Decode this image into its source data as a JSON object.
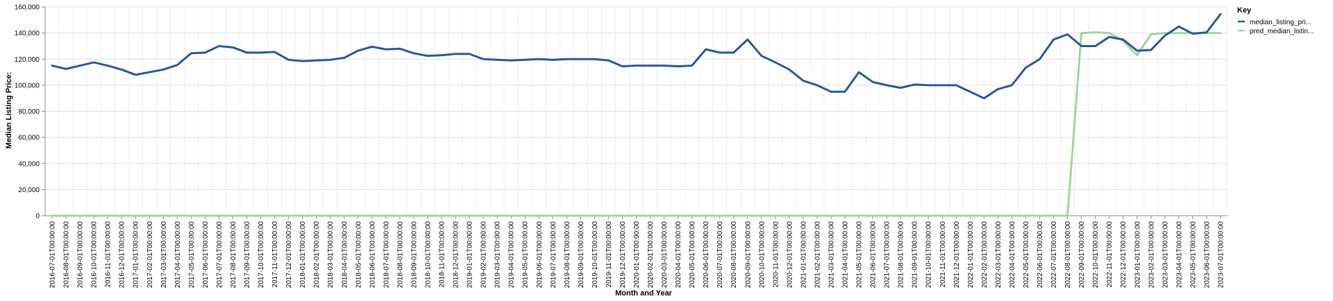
{
  "chart_data": {
    "type": "line",
    "xlabel": "Month and Year",
    "ylabel": "Median Listing Price:",
    "ylim": [
      0,
      160000
    ],
    "yticks": [
      "0",
      "20,000",
      "40,000",
      "60,000",
      "80,000",
      "100,000",
      "120,000",
      "140,000",
      "160,000"
    ],
    "grid": true,
    "legend": {
      "title": "Key",
      "placement": "right"
    },
    "categories": [
      "2016-07-01T00:00:00",
      "2016-08-01T00:00:00",
      "2016-09-01T00:00:00",
      "2016-10-01T00:00:00",
      "2016-11-01T00:00:00",
      "2016-12-01T00:00:00",
      "2017-01-01T00:00:00",
      "2017-02-01T00:00:00",
      "2017-03-01T00:00:00",
      "2017-04-01T00:00:00",
      "2017-05-01T00:00:00",
      "2017-06-01T00:00:00",
      "2017-07-01T00:00:00",
      "2017-08-01T00:00:00",
      "2017-09-01T00:00:00",
      "2017-10-01T00:00:00",
      "2017-11-01T00:00:00",
      "2017-12-01T00:00:00",
      "2018-01-01T00:00:00",
      "2018-02-01T00:00:00",
      "2018-03-01T00:00:00",
      "2018-04-01T00:00:00",
      "2018-05-01T00:00:00",
      "2018-06-01T00:00:00",
      "2018-07-01T00:00:00",
      "2018-08-01T00:00:00",
      "2018-09-01T00:00:00",
      "2018-10-01T00:00:00",
      "2018-11-01T00:00:00",
      "2018-12-01T00:00:00",
      "2019-01-01T00:00:00",
      "2019-02-01T00:00:00",
      "2019-03-01T00:00:00",
      "2019-04-01T00:00:00",
      "2019-05-01T00:00:00",
      "2019-06-01T00:00:00",
      "2019-07-01T00:00:00",
      "2019-08-01T00:00:00",
      "2019-09-01T00:00:00",
      "2019-10-01T00:00:00",
      "2019-11-01T00:00:00",
      "2019-12-01T00:00:00",
      "2020-01-01T00:00:00",
      "2020-02-01T00:00:00",
      "2020-03-01T00:00:00",
      "2020-04-01T00:00:00",
      "2020-05-01T00:00:00",
      "2020-06-01T00:00:00",
      "2020-07-01T00:00:00",
      "2020-08-01T00:00:00",
      "2020-09-01T00:00:00",
      "2020-10-01T00:00:00",
      "2020-11-01T00:00:00",
      "2020-12-01T00:00:00",
      "2021-01-01T00:00:00",
      "2021-02-01T00:00:00",
      "2021-03-01T00:00:00",
      "2021-04-01T00:00:00",
      "2021-05-01T00:00:00",
      "2021-06-01T00:00:00",
      "2021-07-01T00:00:00",
      "2021-08-01T00:00:00",
      "2021-09-01T00:00:00",
      "2021-10-01T00:00:00",
      "2021-11-01T00:00:00",
      "2021-12-01T00:00:00",
      "2022-01-01T00:00:00",
      "2022-02-01T00:00:00",
      "2022-03-01T00:00:00",
      "2022-04-01T00:00:00",
      "2022-05-01T00:00:00",
      "2022-06-01T00:00:00",
      "2022-07-01T00:00:00",
      "2022-08-01T00:00:00",
      "2022-09-01T00:00:00",
      "2022-10-01T00:00:00",
      "2022-11-01T00:00:00",
      "2022-12-01T00:00:00",
      "2023-01-01T00:00:00",
      "2023-02-01T00:00:00",
      "2023-03-01T00:00:00",
      "2023-04-01T00:00:00",
      "2023-05-01T00:00:00",
      "2023-06-01T00:00:00",
      "2023-07-01T00:00:00"
    ],
    "series": [
      {
        "name": "median_listing_pri...",
        "color": "#2b5797",
        "values": [
          115000,
          112500,
          115000,
          117500,
          115000,
          112000,
          108000,
          110000,
          112000,
          115500,
          124500,
          125000,
          130000,
          129000,
          125000,
          125000,
          125500,
          119500,
          118500,
          119000,
          119500,
          121000,
          126500,
          129500,
          127500,
          128000,
          124500,
          122500,
          123000,
          124000,
          124000,
          120000,
          119500,
          119000,
          119500,
          120000,
          119500,
          120000,
          120000,
          120000,
          119000,
          114500,
          115000,
          115000,
          115000,
          114500,
          115000,
          127500,
          125000,
          125000,
          135000,
          122500,
          117500,
          112000,
          103500,
          100000,
          95000,
          95000,
          110000,
          102500,
          100000,
          98000,
          100500,
          100000,
          100000,
          100000,
          95000,
          90000,
          97000,
          100000,
          113500,
          120000,
          135000,
          139000,
          130000,
          130000,
          137000,
          135000,
          126500,
          127000,
          138000,
          145000,
          139500,
          140500,
          154500
        ]
      },
      {
        "name": "pred_median_listin...",
        "color": "#9fd69a",
        "values": [
          0,
          0,
          0,
          0,
          0,
          0,
          0,
          0,
          0,
          0,
          0,
          0,
          0,
          0,
          0,
          0,
          0,
          0,
          0,
          0,
          0,
          0,
          0,
          0,
          0,
          0,
          0,
          0,
          0,
          0,
          0,
          0,
          0,
          0,
          0,
          0,
          0,
          0,
          0,
          0,
          0,
          0,
          0,
          0,
          0,
          0,
          0,
          0,
          0,
          0,
          0,
          0,
          0,
          0,
          0,
          0,
          0,
          0,
          0,
          0,
          0,
          0,
          0,
          0,
          0,
          0,
          0,
          0,
          0,
          0,
          0,
          0,
          0,
          0,
          140000,
          140500,
          140000,
          134000,
          123000,
          139000,
          140000,
          140000,
          140000,
          140000,
          140000
        ]
      }
    ]
  }
}
